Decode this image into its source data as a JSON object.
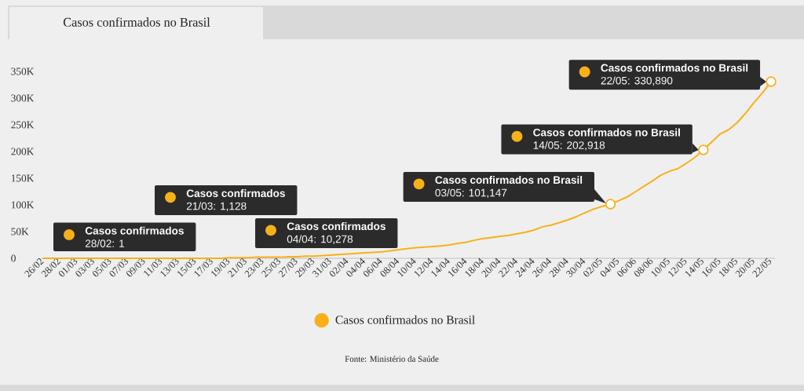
{
  "chart_data": {
    "type": "line",
    "title": "Casos confirmados no Brasil",
    "categories": [
      "26/02",
      null,
      "28/02",
      null,
      "01/03",
      null,
      "03/03",
      null,
      "05/03",
      null,
      "07/03",
      null,
      "09/03",
      null,
      "11/03",
      null,
      "13/03",
      null,
      "15/03",
      null,
      "17/03",
      null,
      "19/03",
      null,
      "21/03",
      null,
      "23/03",
      null,
      "25/03",
      null,
      "27/03",
      null,
      "29/03",
      null,
      "31/03",
      null,
      "02/04",
      null,
      "04/04",
      null,
      "06/04",
      null,
      "08/04",
      null,
      "10/04",
      null,
      "12/04",
      null,
      "14/04",
      null,
      "16/04",
      null,
      "18/04",
      null,
      "20/04",
      null,
      "22/04",
      null,
      "24/04",
      null,
      "26/04",
      null,
      "28/04",
      null,
      "30/04",
      null,
      "02/05",
      null,
      "04/05",
      null,
      "06/06",
      null,
      "08/06",
      null,
      "10/05",
      null,
      "12/05",
      null,
      "14/05",
      null,
      "16/05",
      null,
      "18/05",
      null,
      "20/05",
      null,
      "22/05"
    ],
    "series": [
      {
        "name": "Casos confirmados no Brasil",
        "color": "#f8b019",
        "values": [
          0,
          0,
          1,
          0,
          0,
          0,
          0,
          0,
          0,
          0,
          0,
          0,
          0,
          0,
          0,
          0,
          0,
          0,
          0,
          0,
          0,
          0,
          1000,
          1000,
          1128,
          2000,
          2000,
          2000,
          2000,
          3000,
          3000,
          4000,
          4000,
          5000,
          6000,
          7000,
          8000,
          9000,
          10278,
          11000,
          12000,
          14000,
          16000,
          18000,
          20000,
          21000,
          22000,
          23000,
          25000,
          28000,
          30000,
          34000,
          37000,
          39000,
          41000,
          43000,
          46000,
          49000,
          53000,
          59000,
          62000,
          67000,
          72000,
          78000,
          85000,
          92000,
          97000,
          101147,
          108000,
          115000,
          125000,
          135000,
          145000,
          156000,
          163000,
          168000,
          178000,
          189000,
          202918,
          218000,
          233000,
          241000,
          254000,
          272000,
          292000,
          310000,
          330890
        ]
      }
    ],
    "ylim": [
      0,
      350000
    ],
    "yticks": [
      0,
      {
        "value": 50000,
        "label": "50K"
      },
      {
        "value": 100000,
        "label": "100K"
      },
      {
        "value": 150000,
        "label": "150K"
      },
      {
        "value": 200000,
        "label": "200K"
      },
      {
        "value": 250000,
        "label": "250K"
      },
      {
        "value": 300000,
        "label": "300K"
      },
      {
        "value": 350000,
        "label": "350K"
      }
    ],
    "legend": "bottom",
    "annotations": [
      "**Casos confirmados**\n28/02: 1",
      "**Casos confirmados**\n21/03: 1,128",
      "**Casos confirmados**\n04/04: 10,278",
      "**Casos confirmados no Brasil**\n03/05: 101,147",
      {
        "text": "**Casos confirmados no Brasil**\n14/05: 202,918",
        "x": "14/05",
        "y": 202918
      },
      {
        "text": "**Casos confirmados no Brasil**\n22/05: 330,890",
        "x": "22/05",
        "y": 330890
      },
      "Fonte: Ministério da Saúde"
    ]
  }
}
